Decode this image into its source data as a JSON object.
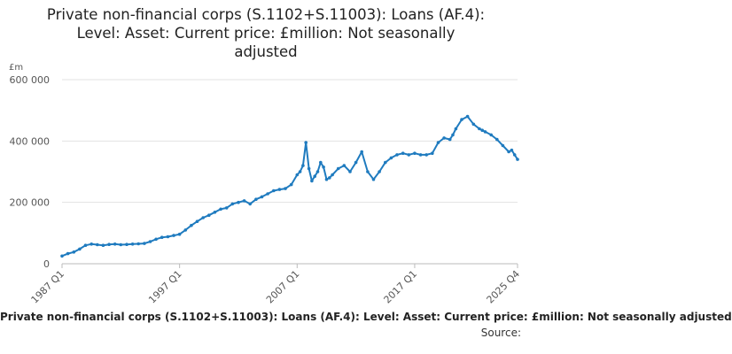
{
  "chart_data": {
    "type": "line",
    "title_lines": [
      "Private non-financial corps (S.1102+S.11003): Loans (AF.4):",
      "Level: Asset: Current price: £million: Not seasonally",
      "adjusted"
    ],
    "unit": "£m",
    "bottom_caption": "Private non-financial corps (S.1102+S.11003): Loans (AF.4): Level: Asset: Current price: £million: Not seasonally adjusted",
    "source_label": "Source:",
    "x_tick_labels": [
      "1987 Q1",
      "1997 Q1",
      "2007 Q1",
      "2017 Q1",
      "2025 Q4"
    ],
    "x_tick_values": [
      1987.0,
      1997.0,
      2007.0,
      2017.0,
      2025.75
    ],
    "y_tick_labels": [
      "0",
      "200 000",
      "400 000",
      "600 000"
    ],
    "y_tick_values": [
      0,
      200000,
      400000,
      600000
    ],
    "ylim": [
      0,
      600000
    ],
    "xlim": [
      1987.0,
      2025.75
    ],
    "grid": true,
    "line_color": "#1f7bbf",
    "series": [
      {
        "x": [
          1987.0,
          1987.5,
          1988.0,
          1988.5,
          1989.0,
          1989.5,
          1990.0,
          1990.5,
          1991.0,
          1991.5,
          1992.0,
          1992.5,
          1993.0,
          1993.5,
          1994.0,
          1994.5,
          1995.0,
          1995.5,
          1996.0,
          1996.5,
          1997.0,
          1997.5,
          1998.0,
          1998.5,
          1999.0,
          1999.5,
          2000.0,
          2000.5,
          2001.0,
          2001.5,
          2002.0,
          2002.5,
          2003.0,
          2003.5,
          2004.0,
          2004.5,
          2005.0,
          2005.5,
          2006.0,
          2006.5,
          2007.0,
          2007.25,
          2007.5,
          2007.75,
          2008.0,
          2008.25,
          2008.5,
          2008.75,
          2009.0,
          2009.25,
          2009.5,
          2009.75,
          2010.0,
          2010.5,
          2011.0,
          2011.5,
          2012.0,
          2012.5,
          2013.0,
          2013.5,
          2014.0,
          2014.5,
          2015.0,
          2015.5,
          2016.0,
          2016.5,
          2017.0,
          2017.5,
          2018.0,
          2018.5,
          2019.0,
          2019.5,
          2020.0,
          2020.25,
          2020.5,
          2021.0,
          2021.5,
          2022.0,
          2022.5,
          2022.75,
          2023.0,
          2023.5,
          2024.0,
          2024.5,
          2025.0,
          2025.25,
          2025.5,
          2025.75
        ],
        "y": [
          25000,
          33000,
          38000,
          48000,
          60000,
          64000,
          62000,
          60000,
          63000,
          64000,
          62000,
          63000,
          64000,
          65000,
          66000,
          72000,
          80000,
          86000,
          88000,
          92000,
          96000,
          110000,
          125000,
          138000,
          150000,
          158000,
          168000,
          178000,
          182000,
          195000,
          200000,
          205000,
          195000,
          210000,
          218000,
          228000,
          238000,
          242000,
          245000,
          258000,
          290000,
          300000,
          320000,
          395000,
          310000,
          270000,
          285000,
          300000,
          330000,
          315000,
          275000,
          280000,
          290000,
          310000,
          320000,
          300000,
          330000,
          365000,
          300000,
          275000,
          300000,
          330000,
          345000,
          355000,
          360000,
          355000,
          360000,
          355000,
          355000,
          360000,
          395000,
          410000,
          405000,
          420000,
          440000,
          470000,
          480000,
          455000,
          440000,
          435000,
          430000,
          420000,
          405000,
          385000,
          365000,
          370000,
          355000,
          340000
        ]
      }
    ]
  }
}
